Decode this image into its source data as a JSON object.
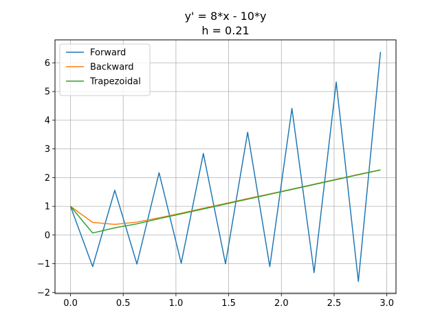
{
  "chart_data": {
    "type": "line",
    "title_lines": [
      "y' = 8*x - 10*y",
      "h = 0.21"
    ],
    "xlabel": "",
    "ylabel": "",
    "xlim": [
      -0.147,
      3.087
    ],
    "ylim": [
      -2.04,
      6.8
    ],
    "x_ticks": [
      0.0,
      0.5,
      1.0,
      1.5,
      2.0,
      2.5,
      3.0
    ],
    "x_tick_labels": [
      "0.0",
      "0.5",
      "1.0",
      "1.5",
      "2.0",
      "2.5",
      "3.0"
    ],
    "y_ticks": [
      -2,
      -1,
      0,
      1,
      2,
      3,
      4,
      5,
      6
    ],
    "y_tick_labels": [
      "−2",
      "−1",
      "0",
      "1",
      "2",
      "3",
      "4",
      "5",
      "6"
    ],
    "grid": true,
    "legend_position": "top-left",
    "x": [
      0.0,
      0.21,
      0.42,
      0.63,
      0.84,
      1.05,
      1.26,
      1.47,
      1.68,
      1.89,
      2.1,
      2.31,
      2.52,
      2.73,
      2.94
    ],
    "series": [
      {
        "name": "Forward",
        "color": "#1f77b4",
        "values": [
          1.0,
          -1.1,
          1.56,
          -1.01,
          2.17,
          -0.98,
          2.84,
          -1.0,
          3.58,
          -1.1,
          4.41,
          -1.31,
          5.33,
          -1.62,
          6.38
        ]
      },
      {
        "name": "Backward",
        "color": "#ff7f0e",
        "values": [
          1.0,
          0.44,
          0.37,
          0.45,
          0.6,
          0.76,
          0.93,
          1.1,
          1.27,
          1.43,
          1.6,
          1.77,
          1.94,
          2.11,
          2.27
        ]
      },
      {
        "name": "Trapezoidal",
        "color": "#2ca02c",
        "values": [
          1.0,
          0.07,
          0.25,
          0.39,
          0.57,
          0.74,
          0.91,
          1.08,
          1.25,
          1.42,
          1.59,
          1.76,
          1.93,
          2.1,
          2.27
        ]
      }
    ]
  }
}
